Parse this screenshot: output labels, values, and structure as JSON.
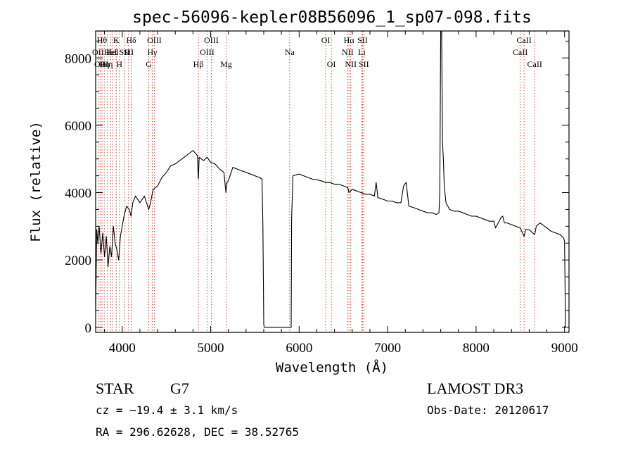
{
  "chart_data": {
    "type": "line",
    "title": "spec-56096-kepler08B56096_1_sp07-098.fits",
    "xlabel": "Wavelength (Å)",
    "ylabel": "Flux (relative)",
    "xlim": [
      3700,
      9050
    ],
    "ylim": [
      -150,
      8800
    ],
    "x_ticks": [
      4000,
      5000,
      6000,
      7000,
      8000,
      9000
    ],
    "y_ticks": [
      0,
      2000,
      4000,
      6000,
      8000
    ],
    "series": [
      {
        "name": "spectrum",
        "points": [
          [
            3700,
            400
          ],
          [
            3712,
            2900
          ],
          [
            3725,
            2500
          ],
          [
            3740,
            3000
          ],
          [
            3760,
            2200
          ],
          [
            3780,
            2800
          ],
          [
            3800,
            2100
          ],
          [
            3820,
            2700
          ],
          [
            3840,
            1800
          ],
          [
            3860,
            2400
          ],
          [
            3880,
            2100
          ],
          [
            3900,
            3000
          ],
          [
            3920,
            2500
          ],
          [
            3940,
            2300
          ],
          [
            3960,
            2000
          ],
          [
            3980,
            2700
          ],
          [
            4000,
            3000
          ],
          [
            4020,
            3300
          ],
          [
            4050,
            3600
          ],
          [
            4080,
            3500
          ],
          [
            4100,
            3300
          ],
          [
            4120,
            3700
          ],
          [
            4150,
            3900
          ],
          [
            4200,
            3700
          ],
          [
            4250,
            3900
          ],
          [
            4300,
            3500
          ],
          [
            4320,
            3700
          ],
          [
            4350,
            4100
          ],
          [
            4400,
            4200
          ],
          [
            4450,
            4450
          ],
          [
            4500,
            4600
          ],
          [
            4550,
            4800
          ],
          [
            4600,
            4850
          ],
          [
            4650,
            4950
          ],
          [
            4700,
            5050
          ],
          [
            4750,
            5150
          ],
          [
            4800,
            5250
          ],
          [
            4850,
            5100
          ],
          [
            4861,
            4400
          ],
          [
            4870,
            5050
          ],
          [
            4920,
            4950
          ],
          [
            4960,
            5050
          ],
          [
            5000,
            4900
          ],
          [
            5050,
            4850
          ],
          [
            5100,
            4700
          ],
          [
            5150,
            4600
          ],
          [
            5172,
            4000
          ],
          [
            5185,
            4300
          ],
          [
            5200,
            4350
          ],
          [
            5250,
            4750
          ],
          [
            5300,
            4700
          ],
          [
            5350,
            4650
          ],
          [
            5400,
            4600
          ],
          [
            5450,
            4550
          ],
          [
            5500,
            4500
          ],
          [
            5550,
            4450
          ],
          [
            5580,
            4400
          ],
          [
            5590,
            3000
          ],
          [
            5600,
            100
          ],
          [
            5605,
            0
          ],
          [
            5910,
            0
          ],
          [
            5915,
            3200
          ],
          [
            5930,
            4500
          ],
          [
            6000,
            4550
          ],
          [
            6050,
            4500
          ],
          [
            6100,
            4450
          ],
          [
            6150,
            4400
          ],
          [
            6200,
            4380
          ],
          [
            6250,
            4350
          ],
          [
            6300,
            4300
          ],
          [
            6350,
            4300
          ],
          [
            6400,
            4250
          ],
          [
            6450,
            4250
          ],
          [
            6500,
            4200
          ],
          [
            6550,
            4150
          ],
          [
            6563,
            4000
          ],
          [
            6600,
            4100
          ],
          [
            6650,
            4050
          ],
          [
            6700,
            4000
          ],
          [
            6750,
            3950
          ],
          [
            6800,
            3950
          ],
          [
            6850,
            3900
          ],
          [
            6870,
            4300
          ],
          [
            6890,
            3850
          ],
          [
            6950,
            3800
          ],
          [
            7000,
            3750
          ],
          [
            7050,
            3750
          ],
          [
            7100,
            3700
          ],
          [
            7150,
            3700
          ],
          [
            7180,
            4200
          ],
          [
            7210,
            4300
          ],
          [
            7240,
            3600
          ],
          [
            7300,
            3550
          ],
          [
            7350,
            3500
          ],
          [
            7400,
            3450
          ],
          [
            7450,
            3400
          ],
          [
            7500,
            3400
          ],
          [
            7550,
            3350
          ],
          [
            7580,
            3400
          ],
          [
            7590,
            4000
          ],
          [
            7600,
            8800
          ],
          [
            7610,
            8800
          ],
          [
            7620,
            5500
          ],
          [
            7630,
            5000
          ],
          [
            7640,
            4200
          ],
          [
            7660,
            3700
          ],
          [
            7700,
            3500
          ],
          [
            7750,
            3450
          ],
          [
            7800,
            3450
          ],
          [
            7850,
            3400
          ],
          [
            7900,
            3350
          ],
          [
            7950,
            3300
          ],
          [
            8000,
            3300
          ],
          [
            8050,
            3250
          ],
          [
            8100,
            3200
          ],
          [
            8150,
            3150
          ],
          [
            8200,
            3150
          ],
          [
            8220,
            2950
          ],
          [
            8250,
            3100
          ],
          [
            8280,
            3250
          ],
          [
            8300,
            3300
          ],
          [
            8320,
            3100
          ],
          [
            8350,
            3100
          ],
          [
            8400,
            3050
          ],
          [
            8450,
            3000
          ],
          [
            8500,
            2950
          ],
          [
            8542,
            2700
          ],
          [
            8560,
            2900
          ],
          [
            8600,
            2900
          ],
          [
            8662,
            2750
          ],
          [
            8680,
            3000
          ],
          [
            8700,
            3050
          ],
          [
            8720,
            3100
          ],
          [
            8750,
            3050
          ],
          [
            8800,
            2950
          ],
          [
            8850,
            2850
          ],
          [
            8900,
            2800
          ],
          [
            8950,
            2750
          ],
          [
            8990,
            2650
          ],
          [
            9000,
            2550
          ],
          [
            9010,
            0
          ]
        ]
      }
    ],
    "lines": [
      {
        "wl": 3727,
        "label": "OII",
        "row": 1
      },
      {
        "wl": 3750,
        "label": "OII",
        "row": 2
      },
      {
        "wl": 3771,
        "label": "Hθ",
        "row": 0
      },
      {
        "wl": 3797,
        "label": "Hη",
        "row": 2
      },
      {
        "wl": 3835,
        "label": "Hη",
        "row": 2
      },
      {
        "wl": 3869,
        "label": "HeI",
        "row": 1
      },
      {
        "wl": 3889,
        "label": "HeI",
        "row": 1
      },
      {
        "wl": 3933,
        "label": "K",
        "row": 0
      },
      {
        "wl": 3968,
        "label": "H",
        "row": 2
      },
      {
        "wl": 4026,
        "label": "SII",
        "row": 1
      },
      {
        "wl": 4072,
        "label": "SII",
        "row": 1
      },
      {
        "wl": 4102,
        "label": "Hδ",
        "row": 0
      },
      {
        "wl": 4300,
        "label": "G",
        "row": 2
      },
      {
        "wl": 4340,
        "label": "Hγ",
        "row": 1
      },
      {
        "wl": 4363,
        "label": "OIII",
        "row": 0
      },
      {
        "wl": 4861,
        "label": "Hβ",
        "row": 2
      },
      {
        "wl": 4959,
        "label": "OIII",
        "row": 1
      },
      {
        "wl": 5007,
        "label": "OIII",
        "row": 0
      },
      {
        "wl": 5175,
        "label": "Mg",
        "row": 2
      },
      {
        "wl": 5893,
        "label": "Na",
        "row": 1
      },
      {
        "wl": 6300,
        "label": "OI",
        "row": 0
      },
      {
        "wl": 6364,
        "label": "OI",
        "row": 2
      },
      {
        "wl": 6548,
        "label": "NII",
        "row": 1
      },
      {
        "wl": 6563,
        "label": "Hα",
        "row": 0
      },
      {
        "wl": 6583,
        "label": "NII",
        "row": 2
      },
      {
        "wl": 6708,
        "label": "Li",
        "row": 1
      },
      {
        "wl": 6716,
        "label": "SII",
        "row": 0
      },
      {
        "wl": 6731,
        "label": "SII",
        "row": 2
      },
      {
        "wl": 8498,
        "label": "CaII",
        "row": 1
      },
      {
        "wl": 8542,
        "label": "CaII",
        "row": 0
      },
      {
        "wl": 8662,
        "label": "CaII",
        "row": 2
      }
    ]
  },
  "info": {
    "object_type": "STAR",
    "subclass": "G7",
    "cz": "cz = −19.4 ± 3.1 km/s",
    "coords": "RA = 296.62628, DEC =  38.52765",
    "survey": "LAMOST DR3",
    "obs_date": "Obs-Date: 20120617"
  }
}
